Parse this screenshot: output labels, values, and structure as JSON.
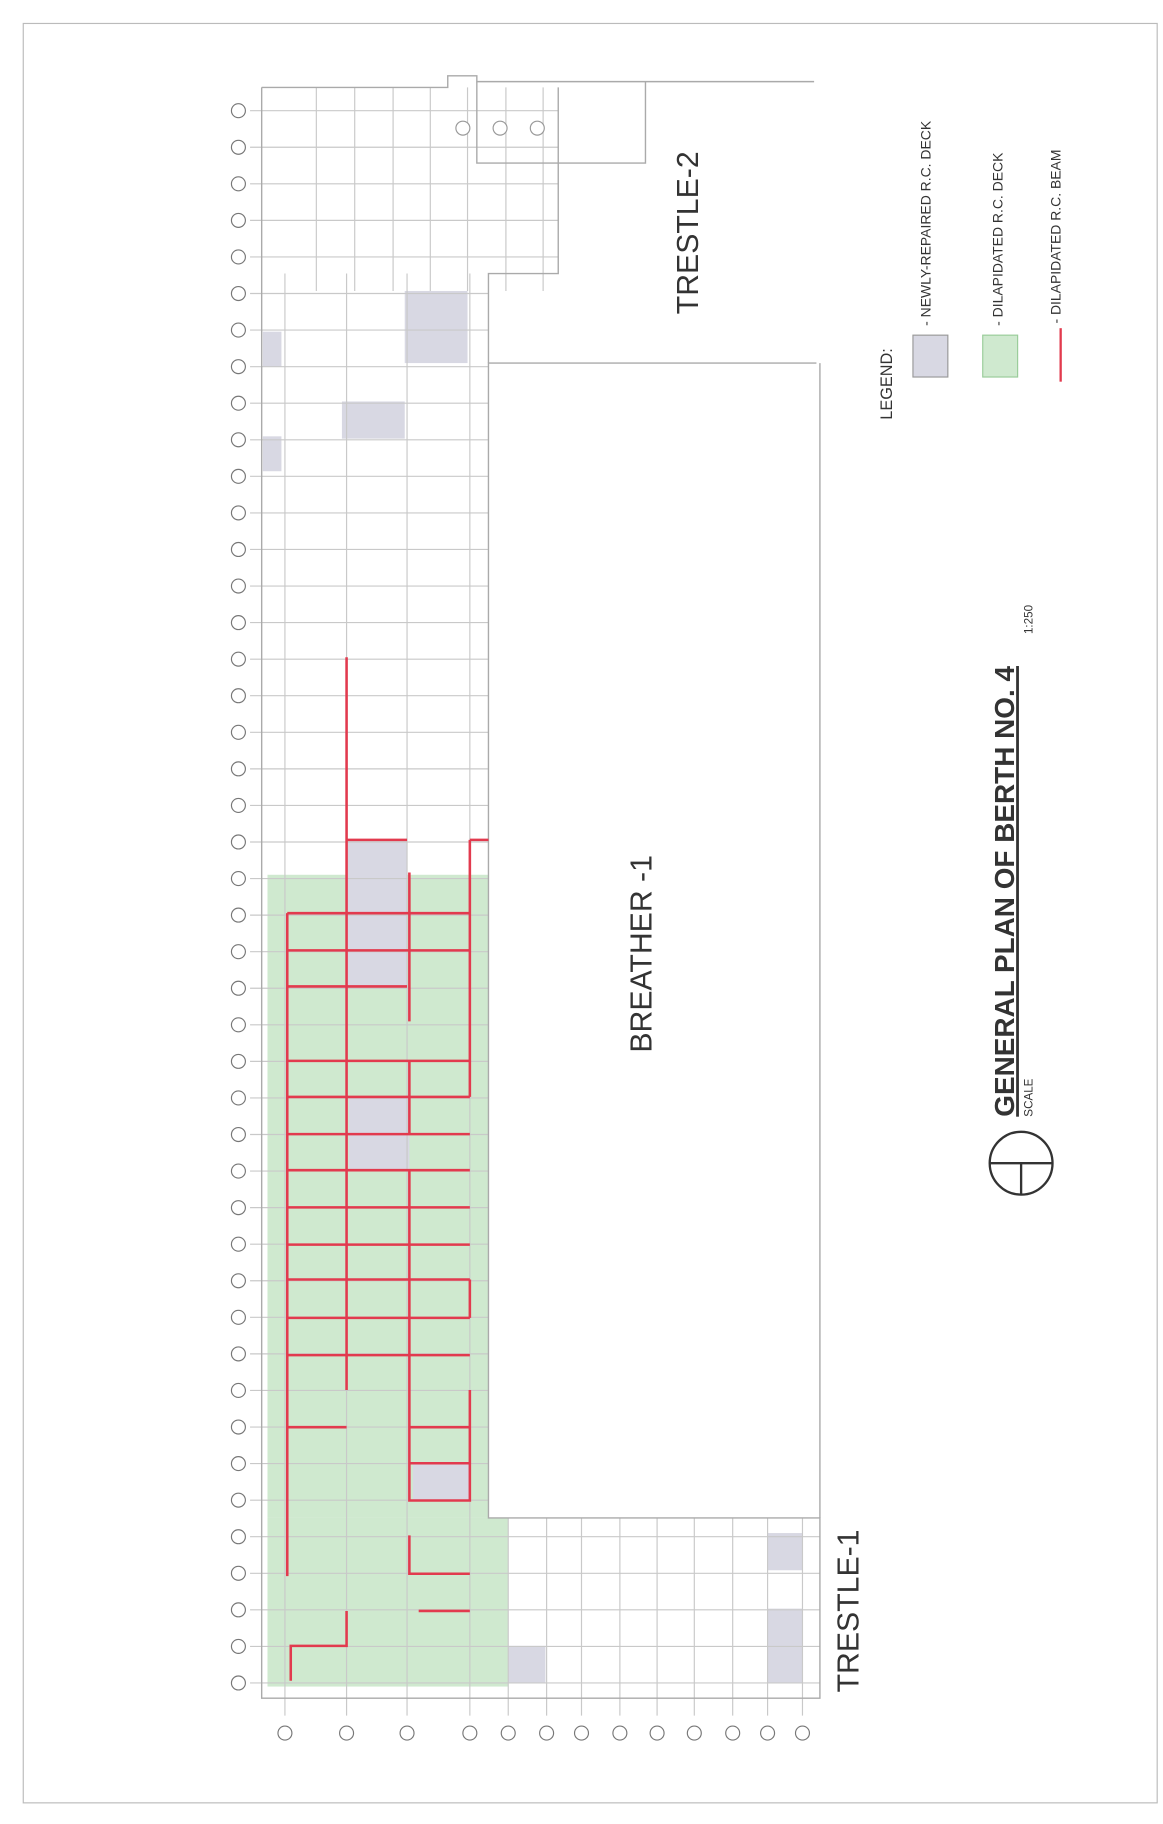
{
  "drawing": {
    "title": "GENERAL PLAN OF BERTH NO. 4",
    "scale_label": "SCALE",
    "scale": "1:250",
    "labels": {
      "trestle_2": "TRESTLE-2",
      "trestle_1": "TRESTLE-1",
      "breather": "BREATHER -1"
    },
    "legend": {
      "title": "LEGEND:",
      "items": [
        "- NEWLY-REPAIRED R.C. DECK",
        "- DILAPIDATED R.C. DECK",
        "- DILAPIDATED R.C. BEAM"
      ]
    }
  }
}
